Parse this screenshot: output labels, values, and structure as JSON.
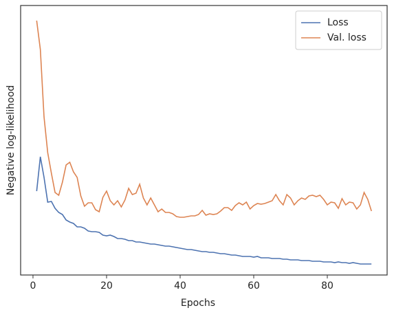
{
  "chart_data": {
    "type": "line",
    "xlabel": "Epochs",
    "ylabel": "Negative log-likelihood",
    "x": [
      1,
      2,
      3,
      4,
      5,
      6,
      7,
      8,
      9,
      10,
      11,
      12,
      13,
      14,
      15,
      16,
      17,
      18,
      19,
      20,
      21,
      22,
      23,
      24,
      25,
      26,
      27,
      28,
      29,
      30,
      31,
      32,
      33,
      34,
      35,
      36,
      37,
      38,
      39,
      40,
      41,
      42,
      43,
      44,
      45,
      46,
      47,
      48,
      49,
      50,
      51,
      52,
      53,
      54,
      55,
      56,
      57,
      58,
      59,
      60,
      61,
      62,
      63,
      64,
      65,
      66,
      67,
      68,
      69,
      70,
      71,
      72,
      73,
      74,
      75,
      76,
      77,
      78,
      79,
      80,
      81,
      82,
      83,
      84,
      85,
      86,
      87,
      88,
      89,
      90,
      91,
      92
    ],
    "series": [
      {
        "name": "Loss",
        "color": "#4c72b0",
        "values": [
          122,
          172,
          142,
          106,
          107,
          97,
          91,
          88,
          80,
          77,
          75,
          70,
          70,
          68,
          64,
          63,
          63,
          62,
          58,
          57,
          58,
          56,
          53,
          53,
          52,
          50,
          50,
          48,
          48,
          47,
          46,
          45,
          45,
          44,
          43,
          42,
          42,
          41,
          40,
          39,
          38,
          37,
          37,
          36,
          35,
          34,
          34,
          33,
          33,
          32,
          31,
          31,
          30,
          29,
          29,
          28,
          27,
          27,
          27,
          26,
          27,
          25,
          25,
          25,
          24,
          24,
          24,
          23,
          23,
          22,
          22,
          22,
          21,
          21,
          21,
          20,
          20,
          20,
          19,
          19,
          19,
          18,
          19,
          18,
          18,
          17,
          18,
          17,
          16,
          16,
          16,
          16
        ]
      },
      {
        "name": "Val. loss",
        "color": "#dd8452",
        "values": [
          370,
          328,
          230,
          178,
          148,
          120,
          116,
          135,
          160,
          164,
          150,
          142,
          115,
          100,
          105,
          105,
          95,
          92,
          113,
          122,
          108,
          102,
          108,
          99,
          109,
          126,
          117,
          119,
          132,
          112,
          102,
          112,
          102,
          92,
          96,
          91,
          91,
          89,
          85,
          84,
          84,
          85,
          86,
          86,
          88,
          94,
          87,
          89,
          88,
          89,
          93,
          98,
          98,
          94,
          101,
          105,
          102,
          106,
          96,
          101,
          104,
          103,
          104,
          106,
          108,
          117,
          108,
          102,
          117,
          112,
          102,
          108,
          112,
          110,
          115,
          116,
          114,
          116,
          110,
          102,
          106,
          105,
          97,
          111,
          102,
          106,
          105,
          96,
          102,
          120,
          110,
          93
        ]
      }
    ],
    "xlim": [
      -3.36,
      96.26
    ],
    "xticks": [
      0,
      20,
      40,
      60,
      80
    ],
    "ylim": [
      0,
      392
    ],
    "legend": "upper right"
  }
}
